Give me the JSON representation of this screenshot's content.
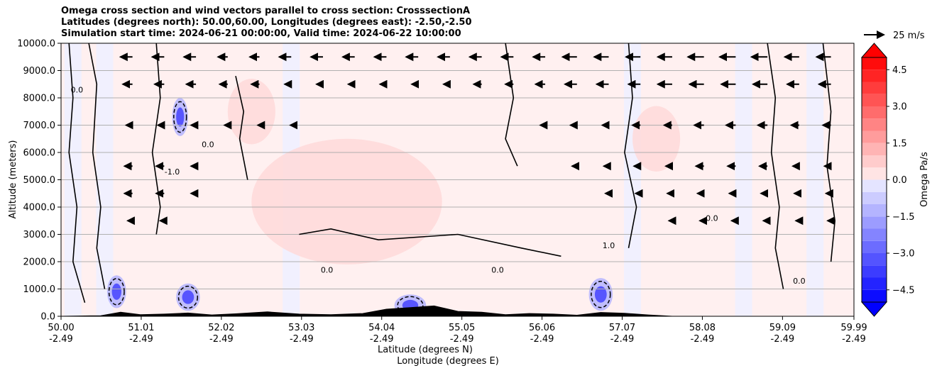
{
  "titles": {
    "line1": "Omega cross section and wind vectors parallel to cross section: CrosssectionA",
    "line2": "Latitudes (degrees north): 50.00,60.00, Longitudes (degrees east): -2.50,-2.50",
    "line3": "Simulation start time: 2024-06-21 00:00:00, Valid time: 2024-06-22 10:00:00"
  },
  "colors": {
    "positive_strong": "#ff0000",
    "positive_light": "#ffd9d9",
    "positive_faint": "#fff0f0",
    "negative_faint": "#f0f0ff",
    "negative_light": "#b0b0ff",
    "negative_strong": "#0000ff",
    "terrain": "#000000"
  },
  "chart_data": {
    "type": "contour",
    "xlabel_line1": "Latitude (degrees N)",
    "xlabel_line2": "Longitude (degrees E)",
    "ylabel": "Altitude (meters)",
    "xlim": [
      50.0,
      59.99
    ],
    "ylim": [
      0,
      10000
    ],
    "x_ticks": [
      {
        "value": 50.0,
        "lat": "50.00",
        "lon": "-2.49"
      },
      {
        "value": 51.01,
        "lat": "51.01",
        "lon": "-2.49"
      },
      {
        "value": 52.02,
        "lat": "52.02",
        "lon": "-2.49"
      },
      {
        "value": 53.03,
        "lat": "53.03",
        "lon": "-2.49"
      },
      {
        "value": 54.04,
        "lat": "54.04",
        "lon": "-2.49"
      },
      {
        "value": 55.05,
        "lat": "55.05",
        "lon": "-2.49"
      },
      {
        "value": 56.06,
        "lat": "56.06",
        "lon": "-2.49"
      },
      {
        "value": 57.07,
        "lat": "57.07",
        "lon": "-2.49"
      },
      {
        "value": 58.08,
        "lat": "58.08",
        "lon": "-2.49"
      },
      {
        "value": 59.09,
        "lat": "59.09",
        "lon": "-2.49"
      },
      {
        "value": 59.99,
        "lat": "59.99",
        "lon": "-2.49"
      }
    ],
    "y_ticks": [
      {
        "value": 0,
        "label": "0.0"
      },
      {
        "value": 1000,
        "label": "1000.0"
      },
      {
        "value": 2000,
        "label": "2000.0"
      },
      {
        "value": 3000,
        "label": "3000.0"
      },
      {
        "value": 4000,
        "label": "4000.0"
      },
      {
        "value": 5000,
        "label": "5000.0"
      },
      {
        "value": 6000,
        "label": "6000.0"
      },
      {
        "value": 7000,
        "label": "7000.0"
      },
      {
        "value": 8000,
        "label": "8000.0"
      },
      {
        "value": 9000,
        "label": "9000.0"
      },
      {
        "value": 10000,
        "label": "10000.0"
      }
    ],
    "colorbar": {
      "label": "Omega Pa/s",
      "range": [
        -5,
        5
      ],
      "ticks": [
        {
          "value": 4.5,
          "label": "4.5"
        },
        {
          "value": 3.0,
          "label": "3.0"
        },
        {
          "value": 1.5,
          "label": "1.5"
        },
        {
          "value": 0.0,
          "label": "0.0"
        },
        {
          "value": -1.5,
          "label": "−1.5"
        },
        {
          "value": -3.0,
          "label": "−3.0"
        },
        {
          "value": -4.5,
          "label": "−4.5"
        }
      ]
    },
    "wind_key": {
      "label": "25 m/s",
      "speed": 25
    },
    "positive_regions": [
      {
        "lat": 53.6,
        "alt": 4200,
        "lat_radius": 1.2,
        "alt_radius": 2300
      },
      {
        "lat": 52.4,
        "alt": 7500,
        "lat_radius": 0.3,
        "alt_radius": 1200
      },
      {
        "lat": 57.5,
        "alt": 6500,
        "lat_radius": 0.3,
        "alt_radius": 1200
      }
    ],
    "negative_regions": [
      {
        "lat": 50.7,
        "alt": 900,
        "lat_radius": 0.12,
        "alt_radius": 600
      },
      {
        "lat": 51.6,
        "alt": 700,
        "lat_radius": 0.15,
        "alt_radius": 500
      },
      {
        "lat": 54.4,
        "alt": 400,
        "lat_radius": 0.2,
        "alt_radius": 400
      },
      {
        "lat": 56.8,
        "alt": 800,
        "lat_radius": 0.15,
        "alt_radius": 600
      },
      {
        "lat": 51.5,
        "alt": 7300,
        "lat_radius": 0.1,
        "alt_radius": 700
      }
    ],
    "terrain_profile": [
      {
        "lat": 50.0,
        "alt": 0
      },
      {
        "lat": 50.5,
        "alt": 20
      },
      {
        "lat": 50.75,
        "alt": 150
      },
      {
        "lat": 51.0,
        "alt": 60
      },
      {
        "lat": 51.3,
        "alt": 80
      },
      {
        "lat": 51.6,
        "alt": 120
      },
      {
        "lat": 51.9,
        "alt": 50
      },
      {
        "lat": 52.2,
        "alt": 90
      },
      {
        "lat": 52.6,
        "alt": 160
      },
      {
        "lat": 53.0,
        "alt": 80
      },
      {
        "lat": 53.4,
        "alt": 60
      },
      {
        "lat": 53.8,
        "alt": 100
      },
      {
        "lat": 54.1,
        "alt": 260
      },
      {
        "lat": 54.4,
        "alt": 320
      },
      {
        "lat": 54.7,
        "alt": 380
      },
      {
        "lat": 55.0,
        "alt": 180
      },
      {
        "lat": 55.3,
        "alt": 150
      },
      {
        "lat": 55.6,
        "alt": 60
      },
      {
        "lat": 55.9,
        "alt": 100
      },
      {
        "lat": 56.2,
        "alt": 80
      },
      {
        "lat": 56.5,
        "alt": 40
      },
      {
        "lat": 56.8,
        "alt": 140
      },
      {
        "lat": 57.1,
        "alt": 110
      },
      {
        "lat": 57.4,
        "alt": 50
      },
      {
        "lat": 57.7,
        "alt": 0
      },
      {
        "lat": 59.99,
        "alt": 0
      }
    ],
    "zero_contours": [
      [
        [
          50.1,
          10000
        ],
        [
          50.15,
          8000
        ],
        [
          50.1,
          6000
        ],
        [
          50.2,
          4000
        ],
        [
          50.15,
          2000
        ],
        [
          50.3,
          500
        ]
      ],
      [
        [
          50.35,
          10000
        ],
        [
          50.45,
          8500
        ],
        [
          50.4,
          6000
        ],
        [
          50.5,
          4000
        ],
        [
          50.45,
          2500
        ],
        [
          50.55,
          1000
        ]
      ],
      [
        [
          51.2,
          10000
        ],
        [
          51.25,
          8000
        ],
        [
          51.15,
          6000
        ],
        [
          51.25,
          4000
        ],
        [
          51.2,
          3000
        ]
      ],
      [
        [
          52.2,
          8800
        ],
        [
          52.3,
          7500
        ],
        [
          52.25,
          6500
        ],
        [
          52.35,
          5000
        ]
      ],
      [
        [
          55.6,
          10000
        ],
        [
          55.7,
          8000
        ],
        [
          55.6,
          6500
        ],
        [
          55.75,
          5500
        ]
      ],
      [
        [
          57.15,
          10000
        ],
        [
          57.2,
          8000
        ],
        [
          57.1,
          6000
        ],
        [
          57.25,
          4000
        ],
        [
          57.15,
          2500
        ]
      ],
      [
        [
          58.9,
          10000
        ],
        [
          59.0,
          8000
        ],
        [
          58.95,
          6000
        ],
        [
          59.05,
          4000
        ],
        [
          59.0,
          2500
        ],
        [
          59.1,
          1000
        ]
      ],
      [
        [
          59.6,
          10000
        ],
        [
          59.7,
          7500
        ],
        [
          59.65,
          5500
        ],
        [
          59.75,
          3500
        ],
        [
          59.7,
          2000
        ]
      ],
      [
        [
          53.0,
          3000
        ],
        [
          53.4,
          3200
        ],
        [
          54.0,
          2800
        ],
        [
          55.0,
          3000
        ],
        [
          55.8,
          2500
        ],
        [
          56.3,
          2200
        ]
      ]
    ],
    "contour_labels": [
      {
        "lat": 50.2,
        "alt": 8200,
        "text": "0.0"
      },
      {
        "lat": 51.4,
        "alt": 5200,
        "text": "-1.0"
      },
      {
        "lat": 51.85,
        "alt": 6200,
        "text": "0.0"
      },
      {
        "lat": 53.35,
        "alt": 1600,
        "text": "0.0"
      },
      {
        "lat": 55.5,
        "alt": 1600,
        "text": "0.0"
      },
      {
        "lat": 56.9,
        "alt": 2500,
        "text": "1.0"
      },
      {
        "lat": 58.2,
        "alt": 3500,
        "text": "0.0"
      },
      {
        "lat": 59.3,
        "alt": 1200,
        "text": "0.0"
      }
    ],
    "wind_vectors": [
      {
        "lat": 50.9,
        "alt": 9500,
        "u": -15
      },
      {
        "lat": 51.3,
        "alt": 9500,
        "u": -15
      },
      {
        "lat": 51.7,
        "alt": 9500,
        "u": -15
      },
      {
        "lat": 52.1,
        "alt": 9500,
        "u": -12
      },
      {
        "lat": 52.5,
        "alt": 9500,
        "u": -12
      },
      {
        "lat": 52.9,
        "alt": 9500,
        "u": -15
      },
      {
        "lat": 53.3,
        "alt": 9500,
        "u": -15
      },
      {
        "lat": 53.7,
        "alt": 9500,
        "u": -15
      },
      {
        "lat": 54.1,
        "alt": 9500,
        "u": -15
      },
      {
        "lat": 54.5,
        "alt": 9500,
        "u": -15
      },
      {
        "lat": 54.9,
        "alt": 9500,
        "u": -15
      },
      {
        "lat": 55.3,
        "alt": 9500,
        "u": -15
      },
      {
        "lat": 55.7,
        "alt": 9500,
        "u": -15
      },
      {
        "lat": 56.1,
        "alt": 9500,
        "u": -15
      },
      {
        "lat": 56.5,
        "alt": 9500,
        "u": -18
      },
      {
        "lat": 56.9,
        "alt": 9500,
        "u": -18
      },
      {
        "lat": 57.3,
        "alt": 9500,
        "u": -18
      },
      {
        "lat": 57.7,
        "alt": 9500,
        "u": -18
      },
      {
        "lat": 58.1,
        "alt": 9500,
        "u": -20
      },
      {
        "lat": 58.5,
        "alt": 9500,
        "u": -20
      },
      {
        "lat": 58.9,
        "alt": 9500,
        "u": -20
      },
      {
        "lat": 59.3,
        "alt": 9500,
        "u": -18
      },
      {
        "lat": 59.7,
        "alt": 9500,
        "u": -18
      },
      {
        "lat": 50.9,
        "alt": 8500,
        "u": -12
      },
      {
        "lat": 51.3,
        "alt": 8500,
        "u": -12
      },
      {
        "lat": 51.7,
        "alt": 8500,
        "u": -12
      },
      {
        "lat": 52.1,
        "alt": 8500,
        "u": -10
      },
      {
        "lat": 52.5,
        "alt": 8500,
        "u": -10
      },
      {
        "lat": 52.9,
        "alt": 8500,
        "u": -8
      },
      {
        "lat": 53.3,
        "alt": 8500,
        "u": -8
      },
      {
        "lat": 53.7,
        "alt": 8500,
        "u": -8
      },
      {
        "lat": 54.1,
        "alt": 8500,
        "u": -8
      },
      {
        "lat": 54.5,
        "alt": 8500,
        "u": -8
      },
      {
        "lat": 54.9,
        "alt": 8500,
        "u": -8
      },
      {
        "lat": 55.3,
        "alt": 8500,
        "u": -10
      },
      {
        "lat": 55.7,
        "alt": 8500,
        "u": -10
      },
      {
        "lat": 56.1,
        "alt": 8500,
        "u": -12
      },
      {
        "lat": 56.5,
        "alt": 8500,
        "u": -15
      },
      {
        "lat": 56.9,
        "alt": 8500,
        "u": -15
      },
      {
        "lat": 57.3,
        "alt": 8500,
        "u": -15
      },
      {
        "lat": 57.7,
        "alt": 8500,
        "u": -18
      },
      {
        "lat": 58.1,
        "alt": 8500,
        "u": -18
      },
      {
        "lat": 58.5,
        "alt": 8500,
        "u": -18
      },
      {
        "lat": 58.9,
        "alt": 8500,
        "u": -18
      },
      {
        "lat": 59.3,
        "alt": 8500,
        "u": -15
      },
      {
        "lat": 59.7,
        "alt": 8500,
        "u": -15
      },
      {
        "lat": 50.9,
        "alt": 7000,
        "u": -8
      },
      {
        "lat": 51.3,
        "alt": 7000,
        "u": -8
      },
      {
        "lat": 51.7,
        "alt": 7000,
        "u": -6
      },
      {
        "lat": 52.1,
        "alt": 7000,
        "u": -4
      },
      {
        "lat": 52.5,
        "alt": 7000,
        "u": -2
      },
      {
        "lat": 52.9,
        "alt": 7000,
        "u": -1
      },
      {
        "lat": 56.1,
        "alt": 7000,
        "u": -6
      },
      {
        "lat": 56.5,
        "alt": 7000,
        "u": -8
      },
      {
        "lat": 56.9,
        "alt": 7000,
        "u": -8
      },
      {
        "lat": 57.3,
        "alt": 7000,
        "u": -10
      },
      {
        "lat": 57.7,
        "alt": 7000,
        "u": -10
      },
      {
        "lat": 58.1,
        "alt": 7000,
        "u": -12
      },
      {
        "lat": 58.5,
        "alt": 7000,
        "u": -12
      },
      {
        "lat": 58.9,
        "alt": 7000,
        "u": -12
      },
      {
        "lat": 59.3,
        "alt": 7000,
        "u": -10
      },
      {
        "lat": 59.7,
        "alt": 7000,
        "u": -10
      },
      {
        "lat": 50.9,
        "alt": 5500,
        "u": -10
      },
      {
        "lat": 51.3,
        "alt": 5500,
        "u": -10
      },
      {
        "lat": 51.7,
        "alt": 5500,
        "u": -6
      },
      {
        "lat": 56.5,
        "alt": 5500,
        "u": -6
      },
      {
        "lat": 56.9,
        "alt": 5500,
        "u": -6
      },
      {
        "lat": 57.3,
        "alt": 5500,
        "u": -8
      },
      {
        "lat": 57.7,
        "alt": 5500,
        "u": -8
      },
      {
        "lat": 58.1,
        "alt": 5500,
        "u": -10
      },
      {
        "lat": 58.5,
        "alt": 5500,
        "u": -10
      },
      {
        "lat": 58.9,
        "alt": 5500,
        "u": -10
      },
      {
        "lat": 59.3,
        "alt": 5500,
        "u": -8
      },
      {
        "lat": 59.7,
        "alt": 5500,
        "u": -8
      },
      {
        "lat": 50.9,
        "alt": 4500,
        "u": -10
      },
      {
        "lat": 51.3,
        "alt": 4500,
        "u": -10
      },
      {
        "lat": 51.7,
        "alt": 4500,
        "u": -6
      },
      {
        "lat": 56.9,
        "alt": 4500,
        "u": -4
      },
      {
        "lat": 57.3,
        "alt": 4500,
        "u": -6
      },
      {
        "lat": 57.7,
        "alt": 4500,
        "u": -6
      },
      {
        "lat": 58.1,
        "alt": 4500,
        "u": -8
      },
      {
        "lat": 58.5,
        "alt": 4500,
        "u": -8
      },
      {
        "lat": 58.9,
        "alt": 4500,
        "u": -8
      },
      {
        "lat": 59.3,
        "alt": 4500,
        "u": -6
      },
      {
        "lat": 59.7,
        "alt": 4500,
        "u": -6
      },
      {
        "lat": 50.9,
        "alt": 3500,
        "u": -6
      },
      {
        "lat": 51.3,
        "alt": 3500,
        "u": -5
      },
      {
        "lat": 57.7,
        "alt": 3500,
        "u": -4
      },
      {
        "lat": 58.1,
        "alt": 3500,
        "u": -5
      },
      {
        "lat": 58.5,
        "alt": 3500,
        "u": -5
      },
      {
        "lat": 58.9,
        "alt": 3500,
        "u": -5
      },
      {
        "lat": 59.3,
        "alt": 3500,
        "u": -4
      },
      {
        "lat": 59.7,
        "alt": 3500,
        "u": -4
      }
    ]
  }
}
